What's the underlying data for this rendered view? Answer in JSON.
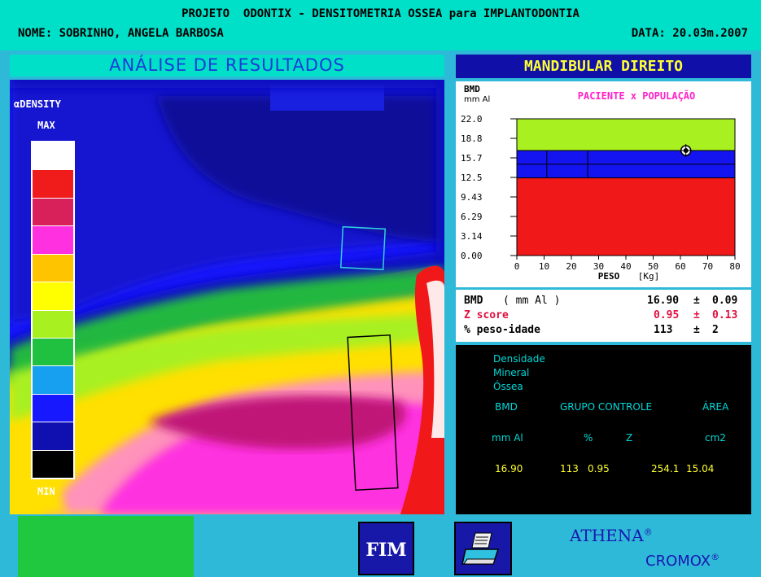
{
  "header": {
    "title": "PROJETO  ODONTIX - DENSITOMETRIA OSSEA para IMPLANTODONTIA",
    "nome": "NOME: SOBRINHO, ANGELA BARBOSA",
    "data": "DATA: 20.03m.2007"
  },
  "analysis_title": "ANÁLISE DE RESULTADOS",
  "region_title": "MANDIBULAR DIREITO",
  "scale": {
    "label": "αDENSITY",
    "max": "MAX",
    "min": "MIN",
    "colors": [
      "#ffffff",
      "#f01c1c",
      "#d8205a",
      "#ff30e0",
      "#ffc400",
      "#ffff00",
      "#a8f020",
      "#20c040",
      "#18a0f0",
      "#1818ff",
      "#1010b0",
      "#000000"
    ]
  },
  "chart_data": {
    "type": "area",
    "header_y": "BMD",
    "header_y_unit": "mm Al",
    "title": "PACIENTE x POPULAÇÃO",
    "xlabel": "PESO",
    "xunit": "[Kg]",
    "x_ticks": [
      "0",
      "10",
      "20",
      "30",
      "40",
      "50",
      "60",
      "70",
      "80"
    ],
    "y_ticks": [
      "0.00",
      "3.14",
      "6.29",
      "9.43",
      "12.5",
      "15.7",
      "18.8",
      "22.0"
    ],
    "xlim": [
      0,
      80
    ],
    "ylim": [
      0,
      22.0
    ],
    "bands": [
      {
        "from": 0,
        "to": 12.5,
        "color": "#f01818"
      },
      {
        "from": 12.5,
        "to": 16.9,
        "color": "#1414f0"
      },
      {
        "from": 16.9,
        "to": 22.0,
        "color": "#a8f020"
      }
    ],
    "band_lines": [
      14.7
    ],
    "vertical_lines": [
      11,
      26
    ],
    "patient_point": {
      "x": 62,
      "y": 16.9
    }
  },
  "stats": {
    "bmd": {
      "label": "BMD",
      "unit": "( mm Al )",
      "value": "16.90",
      "pm": "±",
      "err": "0.09"
    },
    "z": {
      "label": "Z score",
      "value": "0.95",
      "pm": "±",
      "err": "0.13"
    },
    "peso": {
      "label": "% peso-idade",
      "value": "113",
      "pm": "±",
      "err": "2"
    }
  },
  "info": {
    "line1": "Densidade",
    "line2": "Mineral",
    "line3": "Óssea",
    "col_bmd": "BMD",
    "col_grupo": "GRUPO CONTROLE",
    "col_area": "ÁREA",
    "unit_bmd": "mm Al",
    "unit_pct": "%",
    "unit_z": "Z",
    "unit_area": "cm2",
    "val_bmd": "16.90",
    "val_pct": "113",
    "val_z": "0.95",
    "val_area": "254.1",
    "val_area2": "15.04"
  },
  "buttons": {
    "fim": "FIM"
  },
  "brand": {
    "athena": "ATHENA",
    "cromox": "CROMOX",
    "reg": "®"
  },
  "colors": {
    "header": "#00e0c8",
    "background": "#2fb9d8",
    "button": "#1818a8",
    "status": "#20c840"
  }
}
